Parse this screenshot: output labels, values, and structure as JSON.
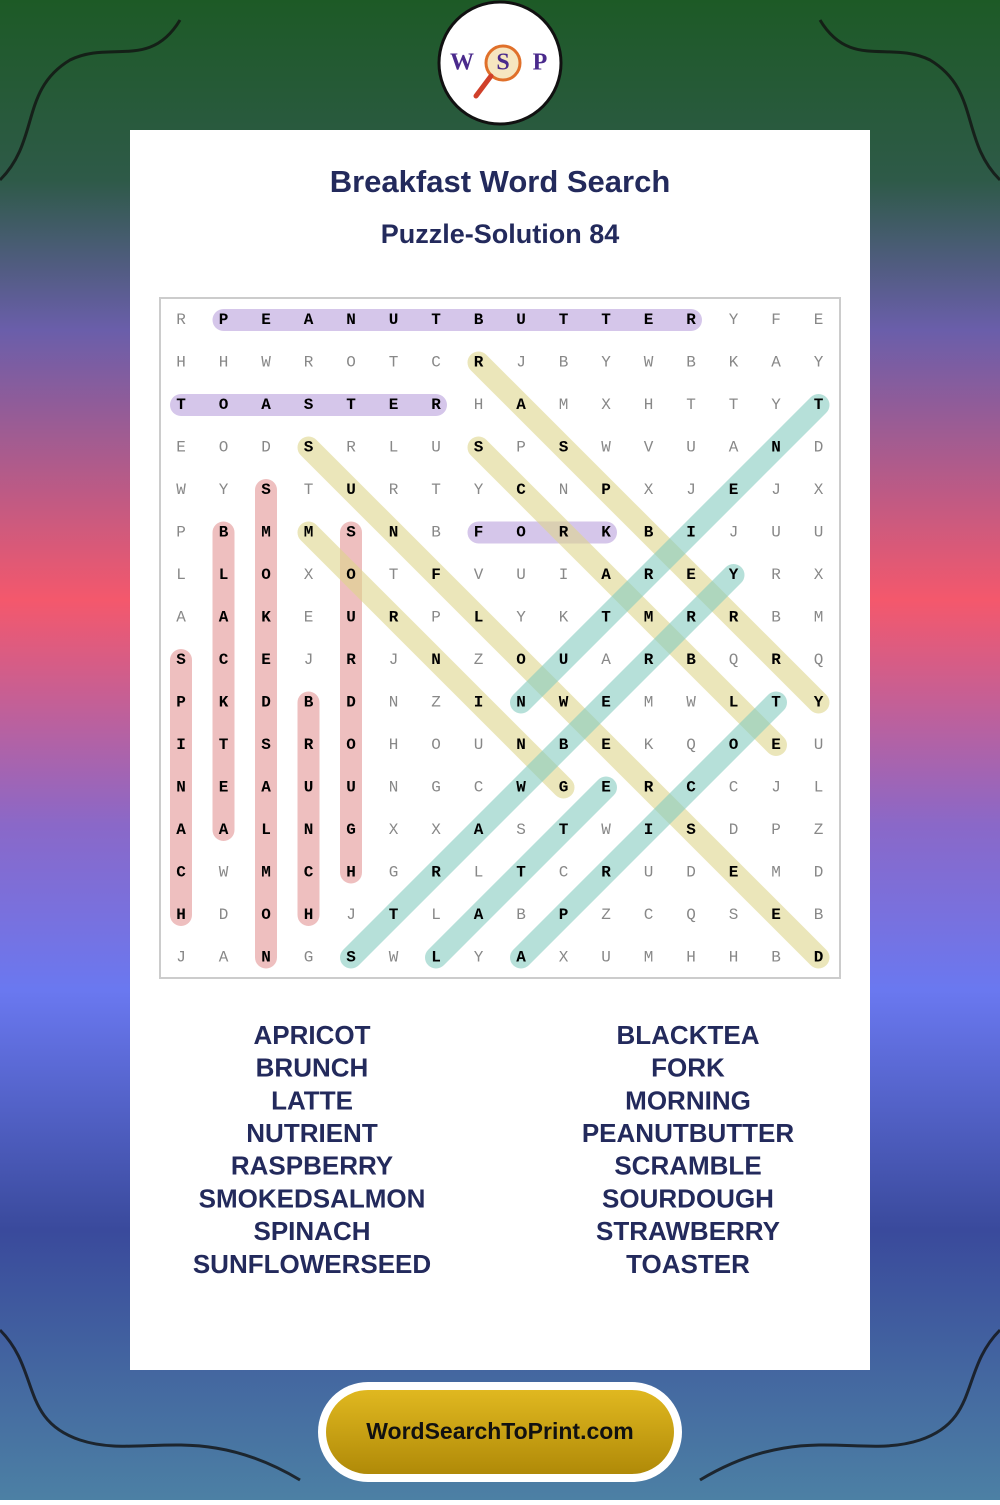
{
  "logo": {
    "letters": [
      "W",
      "S",
      "P"
    ]
  },
  "header": {
    "title": "Breakfast Word Search",
    "subtitle": "Puzzle-Solution 84"
  },
  "grid": {
    "rows": [
      [
        "R",
        "P",
        "E",
        "A",
        "N",
        "U",
        "T",
        "B",
        "U",
        "T",
        "T",
        "E",
        "R",
        "Y",
        "F",
        "E"
      ],
      [
        "H",
        "H",
        "W",
        "R",
        "O",
        "T",
        "C",
        "R",
        "J",
        "B",
        "Y",
        "W",
        "B",
        "K",
        "A",
        "Y"
      ],
      [
        "T",
        "O",
        "A",
        "S",
        "T",
        "E",
        "R",
        "H",
        "A",
        "M",
        "X",
        "H",
        "T",
        "T",
        "Y",
        "T"
      ],
      [
        "E",
        "O",
        "D",
        "S",
        "R",
        "L",
        "U",
        "S",
        "P",
        "S",
        "W",
        "V",
        "U",
        "A",
        "N",
        "D"
      ],
      [
        "W",
        "Y",
        "S",
        "T",
        "U",
        "R",
        "T",
        "Y",
        "C",
        "N",
        "P",
        "X",
        "J",
        "E",
        "J",
        "X"
      ],
      [
        "P",
        "B",
        "M",
        "M",
        "S",
        "N",
        "B",
        "F",
        "O",
        "R",
        "K",
        "B",
        "I",
        "J",
        "U",
        "U"
      ],
      [
        "L",
        "L",
        "O",
        "X",
        "O",
        "T",
        "F",
        "V",
        "U",
        "I",
        "A",
        "R",
        "E",
        "Y",
        "R",
        "X"
      ],
      [
        "A",
        "A",
        "K",
        "E",
        "U",
        "R",
        "P",
        "L",
        "Y",
        "K",
        "T",
        "M",
        "R",
        "R",
        "B",
        "M"
      ],
      [
        "S",
        "C",
        "E",
        "J",
        "R",
        "J",
        "N",
        "Z",
        "O",
        "U",
        "A",
        "R",
        "B",
        "Q",
        "R",
        "Q"
      ],
      [
        "P",
        "K",
        "D",
        "B",
        "D",
        "N",
        "Z",
        "I",
        "N",
        "W",
        "E",
        "M",
        "W",
        "L",
        "T",
        "Y"
      ],
      [
        "I",
        "T",
        "S",
        "R",
        "O",
        "H",
        "O",
        "U",
        "N",
        "B",
        "E",
        "K",
        "Q",
        "O",
        "E",
        "U"
      ],
      [
        "N",
        "E",
        "A",
        "U",
        "U",
        "N",
        "G",
        "C",
        "W",
        "G",
        "E",
        "R",
        "C",
        "C",
        "J",
        "L"
      ],
      [
        "A",
        "A",
        "L",
        "N",
        "G",
        "X",
        "X",
        "A",
        "S",
        "T",
        "W",
        "I",
        "S",
        "D",
        "P",
        "Z"
      ],
      [
        "C",
        "W",
        "M",
        "C",
        "H",
        "G",
        "R",
        "L",
        "T",
        "C",
        "R",
        "U",
        "D",
        "E",
        "M",
        "D"
      ],
      [
        "H",
        "D",
        "O",
        "H",
        "J",
        "T",
        "L",
        "A",
        "B",
        "P",
        "Z",
        "C",
        "Q",
        "S",
        "E",
        "B"
      ],
      [
        "J",
        "A",
        "N",
        "G",
        "S",
        "W",
        "L",
        "Y",
        "A",
        "X",
        "U",
        "M",
        "H",
        "H",
        "B",
        "D"
      ]
    ],
    "highlights": [
      {
        "from": [
          0,
          1
        ],
        "to": [
          0,
          12
        ],
        "color": "#b9a0dc"
      },
      {
        "from": [
          2,
          0
        ],
        "to": [
          2,
          6
        ],
        "color": "#b9a0dc"
      },
      {
        "from": [
          5,
          7
        ],
        "to": [
          5,
          10
        ],
        "color": "#b9a0dc"
      },
      {
        "from": [
          8,
          0
        ],
        "to": [
          14,
          0
        ],
        "color": "#e39595"
      },
      {
        "from": [
          5,
          1
        ],
        "to": [
          12,
          1
        ],
        "color": "#e39595"
      },
      {
        "from": [
          4,
          2
        ],
        "to": [
          15,
          2
        ],
        "color": "#e39595"
      },
      {
        "from": [
          9,
          3
        ],
        "to": [
          14,
          3
        ],
        "color": "#e39595"
      },
      {
        "from": [
          5,
          4
        ],
        "to": [
          13,
          4
        ],
        "color": "#e39595"
      },
      {
        "from": [
          1,
          7
        ],
        "to": [
          9,
          15
        ],
        "color": "#ded58c"
      },
      {
        "from": [
          3,
          7
        ],
        "to": [
          10,
          14
        ],
        "color": "#ded58c"
      },
      {
        "from": [
          3,
          3
        ],
        "to": [
          15,
          15
        ],
        "color": "#ded58c"
      },
      {
        "from": [
          5,
          3
        ],
        "to": [
          11,
          9
        ],
        "color": "#ded58c"
      },
      {
        "from": [
          9,
          8
        ],
        "to": [
          2,
          15
        ],
        "color": "#86cbc0"
      },
      {
        "from": [
          15,
          4
        ],
        "to": [
          6,
          13
        ],
        "color": "#86cbc0"
      },
      {
        "from": [
          15,
          8
        ],
        "to": [
          9,
          14
        ],
        "color": "#86cbc0"
      },
      {
        "from": [
          15,
          6
        ],
        "to": [
          11,
          10
        ],
        "color": "#86cbc0"
      }
    ]
  },
  "word_list": {
    "left": [
      "APRICOT",
      "BRUNCH",
      "LATTE",
      "NUTRIENT",
      "RASPBERRY",
      "SMOKEDSALMON",
      "SPINACH",
      "SUNFLOWERSEED"
    ],
    "right": [
      "BLACKTEA",
      "FORK",
      "MORNING",
      "PEANUTBUTTER",
      "SCRAMBLE",
      "SOURDOUGH",
      "STRAWBERRY",
      "TOASTER"
    ]
  },
  "footer": {
    "link": "WordSearchToPrint.com"
  }
}
